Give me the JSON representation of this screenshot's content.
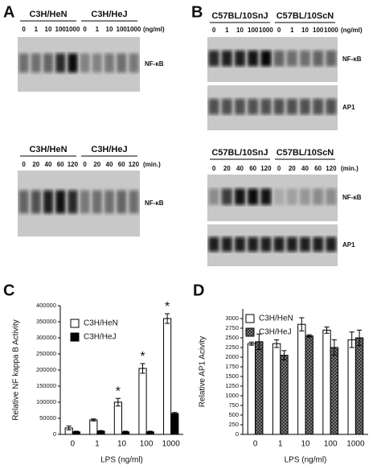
{
  "panel_labels": [
    "A",
    "B",
    "C",
    "D"
  ],
  "gels": [
    {
      "groups": [
        "C3H/HeN",
        "C3H/HeJ"
      ],
      "lanes": [
        "0",
        "1",
        "10",
        "100",
        "1000",
        "0",
        "1",
        "10",
        "100",
        "1000"
      ],
      "unit": "(ng/ml)",
      "bands": [
        "NF-κB"
      ]
    },
    {
      "groups": [
        "C3H/HeN",
        "C3H/HeJ"
      ],
      "lanes": [
        "0",
        "20",
        "40",
        "60",
        "120",
        "0",
        "20",
        "40",
        "60",
        "120"
      ],
      "unit": "(min.)",
      "bands": [
        "NF-κB"
      ]
    },
    {
      "groups": [
        "C57BL/10SnJ",
        "C57BL/10ScN"
      ],
      "lanes": [
        "0",
        "1",
        "10",
        "100",
        "1000",
        "0",
        "1",
        "10",
        "100",
        "1000"
      ],
      "unit": "(ng/ml)",
      "bands": [
        "NF-κB",
        "AP1"
      ]
    },
    {
      "groups": [
        "C57BL/10SnJ",
        "C57BL/10ScN"
      ],
      "lanes": [
        "0",
        "20",
        "40",
        "60",
        "120",
        "0",
        "20",
        "40",
        "60",
        "120"
      ],
      "unit": "(min.)",
      "bands": [
        "NF-κB",
        "AP1"
      ]
    }
  ],
  "chart_data": [
    {
      "type": "bar",
      "x_label": "LPS (ng/ml)",
      "y_label": "Relative NF kappa B  Activity",
      "categories": [
        "0",
        "1",
        "10",
        "100",
        "1000"
      ],
      "series": [
        {
          "name": "C3H/HeN",
          "color": "#ffffff",
          "values": [
            20000,
            45000,
            100000,
            205000,
            360000
          ],
          "errors": [
            6000,
            3000,
            12000,
            15000,
            15000
          ]
        },
        {
          "name": "C3H/HeJ",
          "color": "#000000",
          "values": [
            8000,
            10000,
            8000,
            8000,
            65000
          ],
          "errors": [
            2000,
            2000,
            2000,
            2000,
            3000
          ]
        }
      ],
      "ylim": [
        0,
        400000
      ],
      "yticks": [
        0,
        50000,
        100000,
        150000,
        200000,
        250000,
        300000,
        350000,
        400000
      ],
      "annotations": [
        {
          "text": "*",
          "category": "10"
        },
        {
          "text": "*",
          "category": "100"
        },
        {
          "text": "*",
          "category": "1000"
        }
      ],
      "legend": "upper left"
    },
    {
      "type": "bar",
      "x_label": "LPS (ng/ml)",
      "y_label": "Relative AP1 Acivity",
      "categories": [
        "0",
        "1",
        "10",
        "100",
        "1000"
      ],
      "series": [
        {
          "name": "C3H/HeN",
          "color": "#ffffff",
          "values": [
            2350,
            2350,
            2850,
            2700,
            2450
          ],
          "errors": [
            40,
            100,
            170,
            80,
            200
          ]
        },
        {
          "name": "C3H/HeJ",
          "color": "#555555",
          "fill_pattern": "checkered",
          "values": [
            2400,
            2050,
            2550,
            2250,
            2500
          ],
          "errors": [
            200,
            120,
            30,
            200,
            200
          ]
        }
      ],
      "ylim": [
        0,
        3250
      ],
      "yticks": [
        0,
        250,
        500,
        750,
        1000,
        1250,
        1500,
        1750,
        2000,
        2250,
        2500,
        2750,
        3000
      ],
      "legend": "upper left"
    }
  ]
}
